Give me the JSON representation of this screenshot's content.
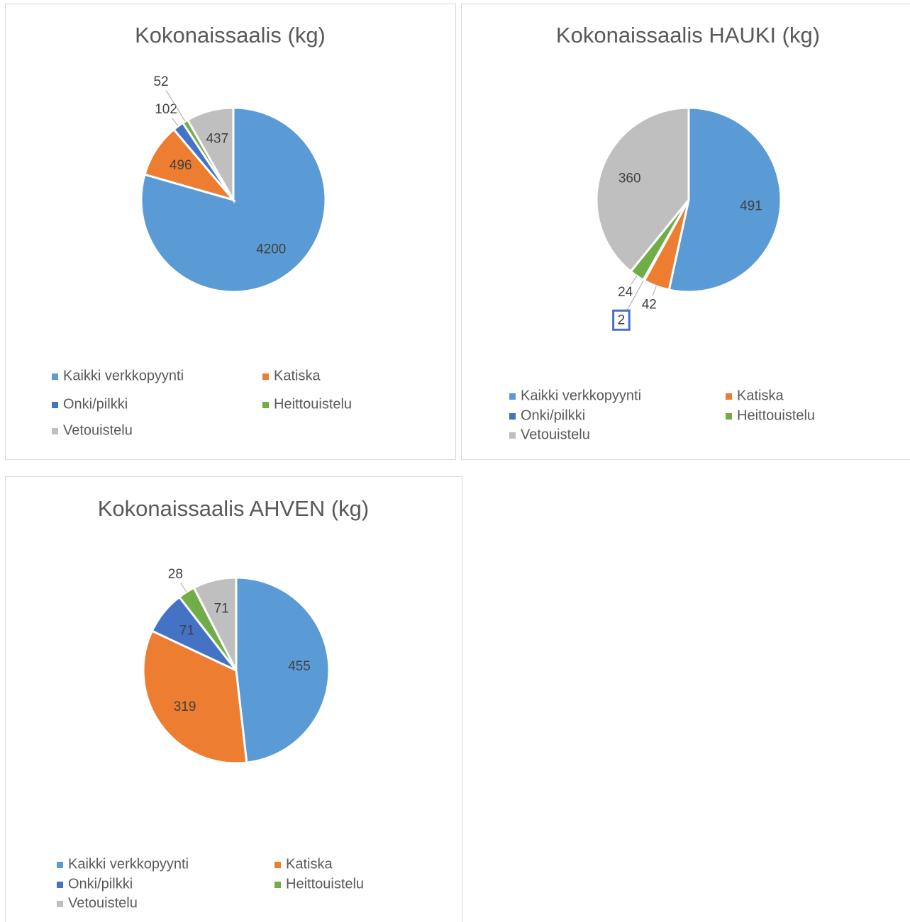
{
  "chart_data": [
    {
      "type": "pie",
      "title": "Kokonaissaalis (kg)",
      "categories": [
        "Kaikki verkkopyynti",
        "Katiska",
        "Onki/pilkki",
        "Heittouistelu",
        "Vetouistelu"
      ],
      "values": [
        4200,
        496,
        102,
        52,
        437
      ],
      "colors": [
        "#5b9bd5",
        "#ed7d31",
        "#4472c4",
        "#70ad47",
        "#bfbfbf"
      ],
      "legend": "bottom"
    },
    {
      "type": "pie",
      "title": "Kokonaissaalis HAUKI (kg)",
      "categories": [
        "Kaikki verkkopyynti",
        "Katiska",
        "Onki/pilkki",
        "Heittouistelu",
        "Vetouistelu"
      ],
      "values": [
        491,
        42,
        2,
        24,
        360
      ],
      "colors": [
        "#5b9bd5",
        "#ed7d31",
        "#4472c4",
        "#70ad47",
        "#bfbfbf"
      ],
      "legend": "bottom"
    },
    {
      "type": "pie",
      "title": "Kokonaissaalis AHVEN (kg)",
      "categories": [
        "Kaikki verkkopyynti",
        "Katiska",
        "Onki/pilkki",
        "Heittouistelu",
        "Vetouistelu"
      ],
      "values": [
        455,
        319,
        71,
        28,
        71
      ],
      "colors": [
        "#5b9bd5",
        "#ed7d31",
        "#4472c4",
        "#70ad47",
        "#bfbfbf"
      ],
      "legend": "bottom"
    }
  ]
}
